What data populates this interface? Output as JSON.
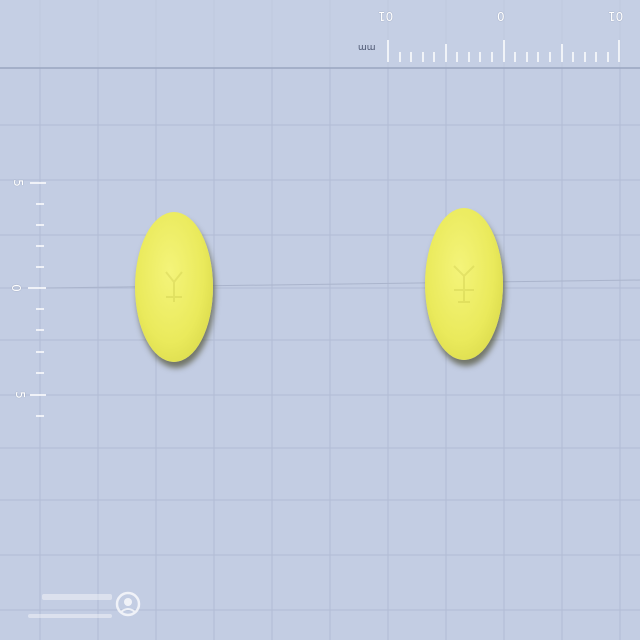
{
  "scene": {
    "background_color": "#c3cde3",
    "tablet_color": "#eaea5c",
    "grid_line_color": "#aeb8d0",
    "ruler_color": "#ffffff"
  },
  "ruler_top": {
    "unit": "mm",
    "labels": [
      "01",
      "0",
      "01"
    ]
  },
  "ruler_left": {
    "labels": [
      "5",
      "0",
      "5"
    ]
  },
  "tablets": [
    {
      "name": "tablet-left",
      "shape": "oval",
      "color": "yellow"
    },
    {
      "name": "tablet-right",
      "shape": "oval",
      "color": "yellow"
    }
  ],
  "watermark": {
    "icon": "logo-icon"
  }
}
